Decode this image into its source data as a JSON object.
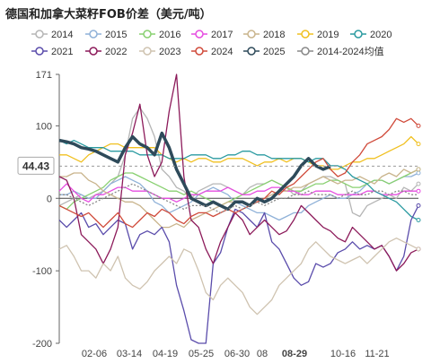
{
  "title": "德国和加拿大菜籽FOB价差（美元/吨）",
  "cursor": {
    "value_label": "44.43",
    "date_label": "08-29"
  },
  "chart_data": {
    "type": "line",
    "title": "德国和加拿大菜籽FOB价差（美元/吨）",
    "ylim": [
      -200,
      171
    ],
    "yticks": [
      171,
      100,
      0,
      -100,
      -200
    ],
    "xticks": [
      "02-06",
      "03-14",
      "04-19",
      "05-25",
      "06-30",
      "08",
      "08-29",
      "10-16",
      "11-21"
    ],
    "grid": false,
    "legend_position": "top",
    "series": [
      {
        "name": "2014",
        "color": "#b5b5b5",
        "values": [
          -10,
          -5,
          0,
          5,
          0,
          5,
          10,
          20,
          30,
          60,
          110,
          125,
          110,
          85,
          40,
          30,
          15,
          10,
          0,
          10,
          15,
          20,
          20,
          15,
          10,
          5,
          15,
          20,
          20,
          25,
          20,
          15,
          5,
          10,
          20,
          25,
          30,
          30,
          25,
          20,
          -20,
          -25,
          -10,
          -5,
          0,
          5,
          0,
          15,
          10,
          20
        ]
      },
      {
        "name": "2015",
        "color": "#8fb1d8",
        "values": [
          5,
          5,
          10,
          5,
          0,
          0,
          10,
          20,
          25,
          30,
          25,
          20,
          10,
          -5,
          -10,
          -20,
          -15,
          -10,
          -5,
          5,
          10,
          15,
          10,
          5,
          -5,
          -10,
          -15,
          -20,
          -20,
          -25,
          -30,
          -25,
          -20,
          -20,
          -10,
          -5,
          0,
          5,
          0,
          0,
          5,
          10,
          20,
          25,
          25,
          20,
          25,
          30,
          30,
          35
        ]
      },
      {
        "name": "2016",
        "color": "#88d070",
        "values": [
          -10,
          -15,
          -5,
          0,
          5,
          10,
          15,
          25,
          30,
          35,
          35,
          30,
          25,
          20,
          15,
          10,
          10,
          5,
          10,
          5,
          0,
          -5,
          -10,
          -5,
          0,
          5,
          10,
          15,
          20,
          25,
          20,
          15,
          10,
          10,
          15,
          20,
          20,
          25,
          25,
          20,
          15,
          15,
          20,
          25,
          25,
          20,
          25,
          30,
          35,
          40
        ]
      },
      {
        "name": "2017",
        "color": "#e64ce0",
        "values": [
          10,
          20,
          10,
          0,
          -5,
          5,
          5,
          10,
          15,
          15,
          10,
          10,
          10,
          5,
          0,
          0,
          -5,
          0,
          5,
          5,
          10,
          10,
          10,
          15,
          10,
          5,
          5,
          10,
          10,
          15,
          15,
          10,
          10,
          5,
          5,
          10,
          10,
          10,
          5,
          5,
          5,
          5,
          10,
          10,
          5,
          5,
          5,
          10,
          10,
          10
        ]
      },
      {
        "name": "2018",
        "color": "#c9b48c",
        "values": [
          30,
          30,
          35,
          35,
          25,
          20,
          10,
          5,
          0,
          -5,
          -5,
          -10,
          -20,
          -30,
          -40,
          -40,
          -35,
          -40,
          -30,
          -25,
          -20,
          -15,
          -10,
          -5,
          -5,
          -5,
          -10,
          -5,
          0,
          5,
          10,
          10,
          15,
          15,
          20,
          25,
          30,
          25,
          20,
          25,
          25,
          30,
          25,
          20,
          30,
          35,
          30,
          40,
          35,
          40
        ]
      },
      {
        "name": "2019",
        "color": "#f0c020",
        "values": [
          60,
          60,
          55,
          50,
          60,
          65,
          70,
          75,
          75,
          70,
          70,
          70,
          70,
          70,
          60,
          55,
          50,
          55,
          50,
          55,
          55,
          50,
          50,
          55,
          55,
          55,
          50,
          45,
          50,
          50,
          55,
          50,
          55,
          55,
          50,
          45,
          45,
          40,
          40,
          45,
          50,
          50,
          55,
          55,
          60,
          65,
          70,
          75,
          85,
          75
        ]
      },
      {
        "name": "2020",
        "color": "#2a9aa0",
        "values": [
          80,
          75,
          80,
          75,
          70,
          70,
          70,
          65,
          65,
          65,
          65,
          60,
          60,
          60,
          60,
          55,
          55,
          55,
          60,
          60,
          60,
          55,
          55,
          60,
          60,
          65,
          65,
          60,
          60,
          55,
          55,
          55,
          55,
          55,
          50,
          55,
          55,
          45,
          45,
          40,
          30,
          25,
          20,
          10,
          5,
          0,
          -5,
          -15,
          -25,
          -30
        ]
      },
      {
        "name": "2021",
        "color": "#5a4cab",
        "values": [
          -30,
          -40,
          -30,
          -20,
          -40,
          -35,
          -50,
          -40,
          -30,
          -35,
          -70,
          -50,
          -45,
          -50,
          -40,
          -60,
          -120,
          -155,
          -195,
          -200,
          -200,
          -90,
          -75,
          -40,
          -15,
          -20,
          -30,
          -40,
          -20,
          -60,
          -70,
          -90,
          -110,
          -120,
          -115,
          -90,
          -95,
          -90,
          -75,
          -70,
          -60,
          -70,
          -65,
          -70,
          -65,
          -80,
          -100,
          -80,
          -30,
          -10
        ]
      },
      {
        "name": "2022",
        "color": "#8c1a5a",
        "values": [
          30,
          25,
          0,
          -50,
          -60,
          -70,
          -90,
          -70,
          -40,
          60,
          90,
          130,
          60,
          30,
          50,
          120,
          171,
          30,
          -30,
          -40,
          -70,
          -90,
          -60,
          -40,
          -20,
          -30,
          -50,
          -40,
          -30,
          -40,
          -50,
          -45,
          -30,
          -10,
          -20,
          -30,
          -40,
          -45,
          -55,
          -60,
          -40,
          -50,
          -60,
          -70,
          -65,
          -80,
          -100,
          -90,
          -75,
          -70
        ]
      },
      {
        "name": "2023",
        "color": "#cfc3b0",
        "values": [
          -70,
          -65,
          -80,
          -100,
          -100,
          -110,
          -90,
          -100,
          -80,
          -110,
          -120,
          -125,
          -115,
          -100,
          -90,
          -80,
          -90,
          -70,
          -75,
          -100,
          -130,
          -140,
          -120,
          -110,
          -120,
          -130,
          -150,
          -160,
          -150,
          -140,
          -120,
          -110,
          -100,
          -90,
          -70,
          -60,
          -70,
          -80,
          -85,
          -90,
          -85,
          -80,
          -90,
          -80,
          -70,
          -60,
          -55,
          -60,
          -65,
          -70
        ]
      },
      {
        "name": "2024",
        "color": "#d04a3a",
        "values": [
          -10,
          -15,
          -20,
          -25,
          -20,
          -30,
          -40,
          -30,
          -20,
          -35,
          -40,
          -30,
          -20,
          -25,
          -15,
          -20,
          -30,
          -35,
          -25,
          -20,
          -20,
          -25,
          -20,
          -15,
          -20,
          -15,
          -10,
          -5,
          0,
          10,
          5,
          15,
          20,
          30,
          40,
          50,
          55,
          40,
          30,
          35,
          50,
          60,
          75,
          80,
          85,
          95,
          110,
          105,
          110,
          100
        ]
      },
      {
        "name": "2025",
        "color": "#2e4a5a",
        "values": [
          80,
          78,
          75,
          70,
          68,
          65,
          60,
          55,
          50,
          70,
          85,
          75,
          70,
          60,
          90,
          70,
          40,
          20,
          0,
          -5,
          -10,
          -5,
          -10,
          -15,
          -5,
          -5,
          -10,
          0,
          -5,
          0,
          10,
          20,
          30,
          45,
          55,
          45,
          40,
          44
        ]
      },
      {
        "name": "2014-2024均值",
        "color": "#888888",
        "values": [
          5,
          5,
          0,
          -5,
          -10,
          -5,
          0,
          5,
          10,
          15,
          20,
          15,
          10,
          5,
          0,
          -5,
          -10,
          -15,
          -10,
          -10,
          -10,
          -15,
          -20,
          -15,
          -10,
          -15,
          -10,
          -5,
          -10,
          -5,
          0,
          0,
          5,
          5,
          10,
          5,
          5,
          5,
          0,
          5,
          10,
          5,
          5,
          10,
          10,
          5,
          10,
          10,
          5,
          5
        ]
      }
    ]
  }
}
